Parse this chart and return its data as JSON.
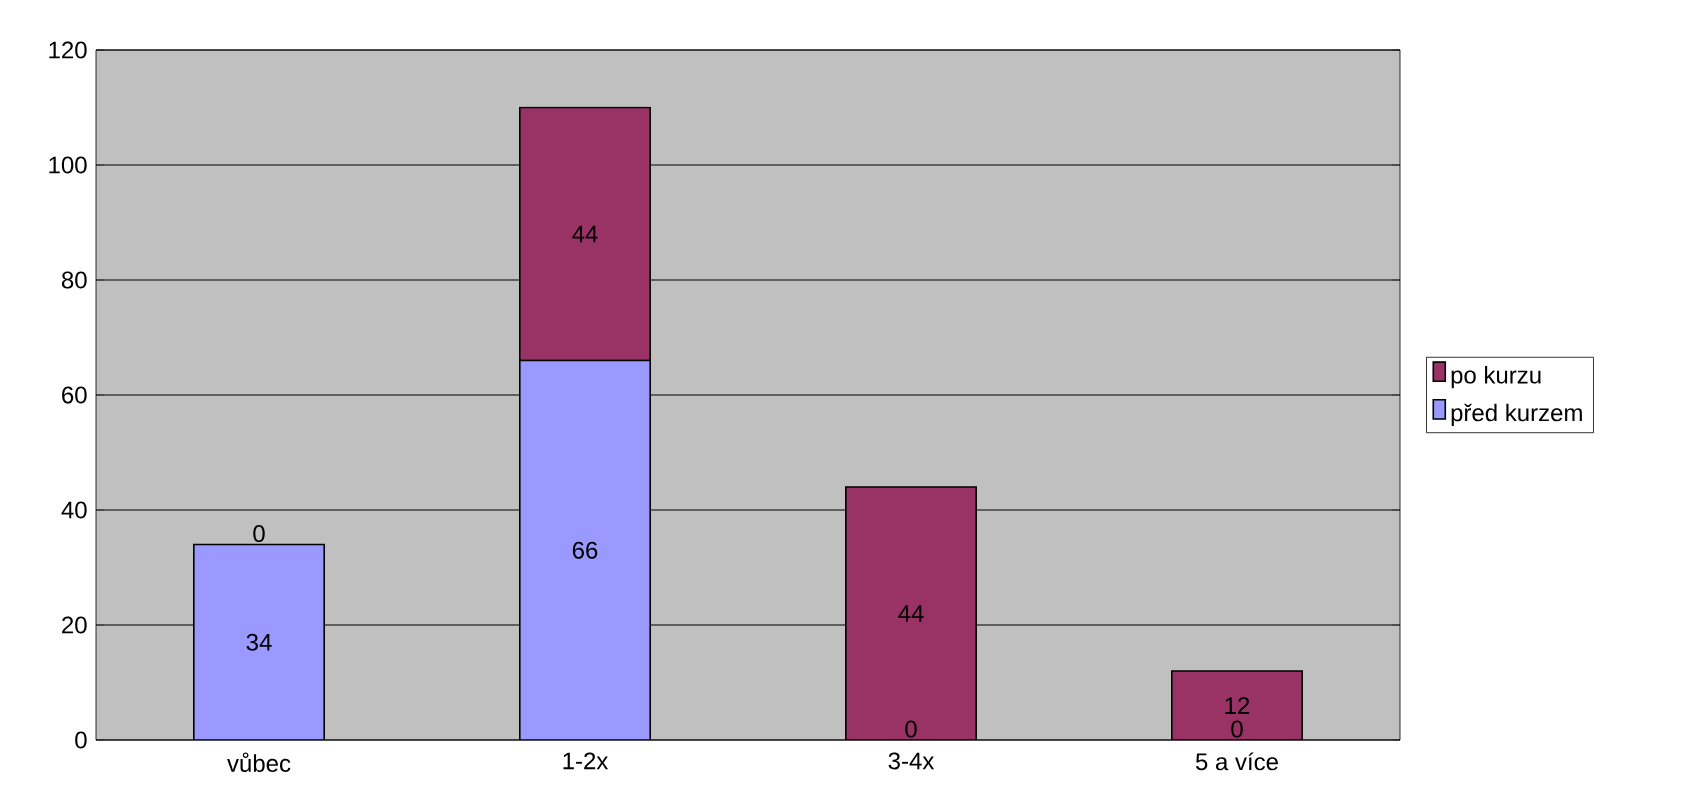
{
  "chart_data": {
    "type": "bar",
    "stacked": true,
    "categories": [
      "vůbec",
      "1-2x",
      "3-4x",
      "5 a více"
    ],
    "series": [
      {
        "name": "před kurzem",
        "color": "#9999ff",
        "values": [
          34,
          66,
          0,
          0
        ],
        "value_labels": [
          "34",
          "66",
          null,
          "0"
        ]
      },
      {
        "name": "po kurzu",
        "color": "#993366",
        "values": [
          0,
          44,
          44,
          12
        ],
        "value_labels": [
          "0",
          "44",
          "44",
          "12"
        ]
      }
    ],
    "annotations": [
      {
        "text": "0",
        "x": "3-4x",
        "y": 0
      }
    ],
    "ylim": [
      0,
      120
    ],
    "yticks": [
      0,
      20,
      40,
      60,
      80,
      100,
      120
    ],
    "grid": "y",
    "legend": "right"
  }
}
